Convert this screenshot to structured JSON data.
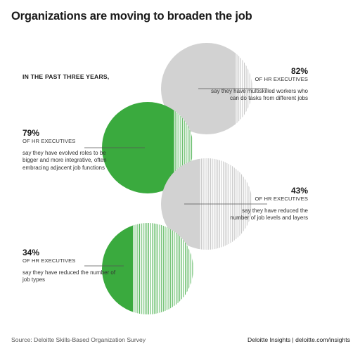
{
  "title": "Organizations are moving to broaden the job",
  "intro": "IN THE PAST THREE YEARS,",
  "colors": {
    "green": "#3aaa3e",
    "gray": "#d2d2d2",
    "green_hatch": "#55b559",
    "gray_hatch": "#c4c4c4"
  },
  "chart_data": {
    "type": "pie",
    "unit": "percent",
    "items": [
      {
        "value": 82,
        "percent_label": "82%",
        "group": "OF HR EXECUTIVES",
        "description": "say they have multiskilled workers who can do tasks from different jobs",
        "color": "gray"
      },
      {
        "value": 79,
        "percent_label": "79%",
        "group": "OF HR EXECUTIVES",
        "description": "say they have evolved roles to be bigger and more integrative, often embracing adjacent job functions",
        "color": "green"
      },
      {
        "value": 43,
        "percent_label": "43%",
        "group": "OF HR EXECUTIVES",
        "description": "say they have reduced the number of job levels and layers",
        "color": "gray"
      },
      {
        "value": 34,
        "percent_label": "34%",
        "group": "OF HR EXECUTIVES",
        "description": "say they have reduced the number of job types",
        "color": "green"
      }
    ]
  },
  "source": "Source: Deloitte Skills-Based Organization Survey",
  "brand": "Deloitte Insights | deloitte.com/insights"
}
